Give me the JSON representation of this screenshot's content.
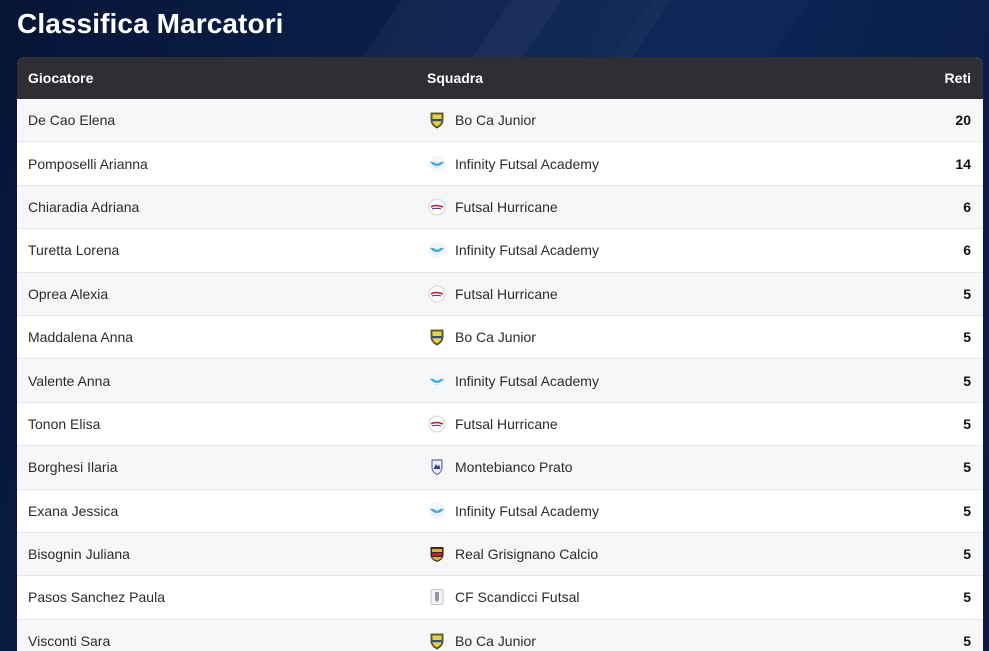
{
  "page": {
    "title": "Classifica Marcatori"
  },
  "table": {
    "headers": {
      "player": "Giocatore",
      "team": "Squadra",
      "goals": "Reti"
    },
    "rows": [
      {
        "player": "De Cao Elena",
        "team": "Bo Ca Junior",
        "goals": "20",
        "logo": "boca-shield-icon"
      },
      {
        "player": "Pomposelli Arianna",
        "team": "Infinity Futsal Academy",
        "goals": "14",
        "logo": "infinity-wings-icon"
      },
      {
        "player": "Chiaradia Adriana",
        "team": "Futsal Hurricane",
        "goals": "6",
        "logo": "hurricane-circle-icon"
      },
      {
        "player": "Turetta Lorena",
        "team": "Infinity Futsal Academy",
        "goals": "6",
        "logo": "infinity-wings-icon"
      },
      {
        "player": "Oprea Alexia",
        "team": "Futsal Hurricane",
        "goals": "5",
        "logo": "hurricane-circle-icon"
      },
      {
        "player": "Maddalena Anna",
        "team": "Bo Ca Junior",
        "goals": "5",
        "logo": "boca-shield-icon"
      },
      {
        "player": "Valente Anna",
        "team": "Infinity Futsal Academy",
        "goals": "5",
        "logo": "infinity-wings-icon"
      },
      {
        "player": "Tonon Elisa",
        "team": "Futsal Hurricane",
        "goals": "5",
        "logo": "hurricane-circle-icon"
      },
      {
        "player": "Borghesi Ilaria",
        "team": "Montebianco Prato",
        "goals": "5",
        "logo": "montebianco-crest-icon"
      },
      {
        "player": "Exana Jessica",
        "team": "Infinity Futsal Academy",
        "goals": "5",
        "logo": "infinity-wings-icon"
      },
      {
        "player": "Bisognin Juliana",
        "team": "Real Grisignano Calcio",
        "goals": "5",
        "logo": "grisignano-shield-icon"
      },
      {
        "player": "Pasos Sanchez Paula",
        "team": "CF Scandicci Futsal",
        "goals": "5",
        "logo": "scandicci-crest-icon"
      },
      {
        "player": "Visconti Sara",
        "team": "Bo Ca Junior",
        "goals": "5",
        "logo": "boca-shield-icon"
      }
    ]
  }
}
